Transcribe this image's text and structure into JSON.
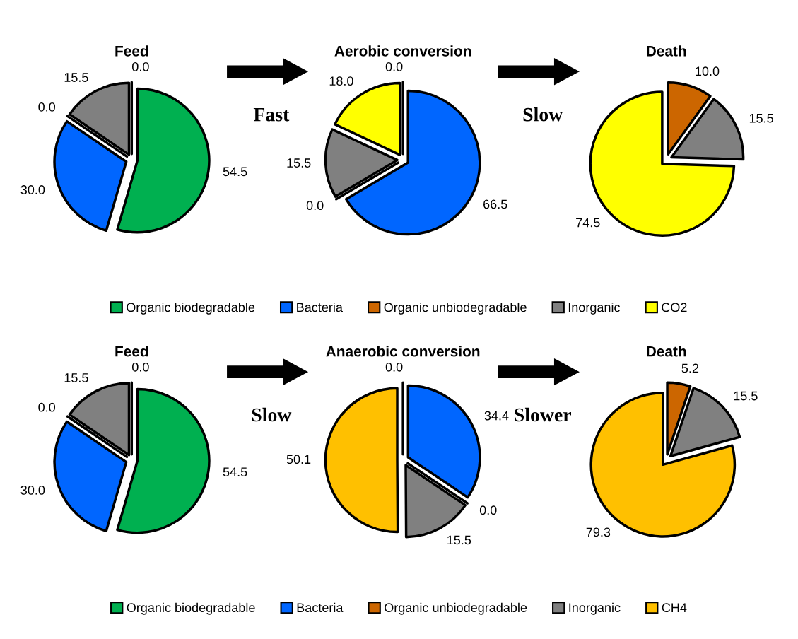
{
  "chart_data": [
    {
      "type": "pie",
      "title": "Feed",
      "categories": [
        "Organic biodegradable",
        "Bacteria",
        "Organic unbiodegradable",
        "Inorganic",
        "CO2"
      ],
      "values": [
        54.5,
        30.0,
        0.0,
        15.5,
        0.0
      ],
      "value_labels": [
        "54.5",
        "30.0",
        "0.0",
        "15.5",
        "0.0"
      ],
      "colors": [
        "#00b050",
        "#0066ff",
        "#cc6600",
        "#808080",
        "#ffff00"
      ],
      "legend": "bottom",
      "annotations": [
        "Fast"
      ]
    },
    {
      "type": "pie",
      "title": "Aerobic conversion",
      "categories": [
        null,
        null,
        null,
        null,
        null
      ],
      "values": [
        0.0,
        66.5,
        0.0,
        15.5,
        18.0
      ],
      "value_labels": [
        "0.0",
        "66.5",
        "0.0",
        "15.5",
        "18.0"
      ],
      "colors": [
        "#00b050",
        "#0066ff",
        "#cc6600",
        "#808080",
        "#ffff00"
      ],
      "annotations": [
        "Slow"
      ]
    },
    {
      "type": "pie",
      "title": "Death",
      "categories": [
        null,
        null,
        null
      ],
      "values": [
        10.0,
        15.5,
        74.5
      ],
      "value_labels": [
        "10.0",
        "15.5",
        "74.5"
      ],
      "colors": [
        "#cc6600",
        "#808080",
        "#ffff00"
      ]
    },
    {
      "type": "pie",
      "title": "Feed",
      "categories": [
        "Organic biodegradable",
        "Bacteria",
        "Organic unbiodegradable",
        "Inorganic",
        "CH4"
      ],
      "values": [
        54.5,
        30.0,
        0.0,
        15.5,
        0.0
      ],
      "value_labels": [
        "54.5",
        "30.0",
        "0.0",
        "15.5",
        "0.0"
      ],
      "colors": [
        "#00b050",
        "#0066ff",
        "#cc6600",
        "#808080",
        "#ffc000"
      ],
      "legend": "bottom",
      "annotations": [
        "Slow"
      ]
    },
    {
      "type": "pie",
      "title": "Anaerobic conversion",
      "categories": [
        null,
        null,
        null,
        null,
        null
      ],
      "values": [
        0.0,
        34.4,
        0.0,
        15.5,
        50.1
      ],
      "value_labels": [
        "0.0",
        "34.4",
        "0.0",
        "15.5",
        "50.1"
      ],
      "colors": [
        "#00b050",
        "#0066ff",
        "#cc6600",
        "#808080",
        "#ffc000"
      ],
      "annotations": [
        "Slower"
      ]
    },
    {
      "type": "pie",
      "title": "Death",
      "categories": [
        null,
        null,
        null
      ],
      "values": [
        5.2,
        15.5,
        79.3
      ],
      "value_labels": [
        "5.2",
        "15.5",
        "79.3"
      ],
      "colors": [
        "#cc6600",
        "#808080",
        "#ffc000"
      ]
    }
  ]
}
